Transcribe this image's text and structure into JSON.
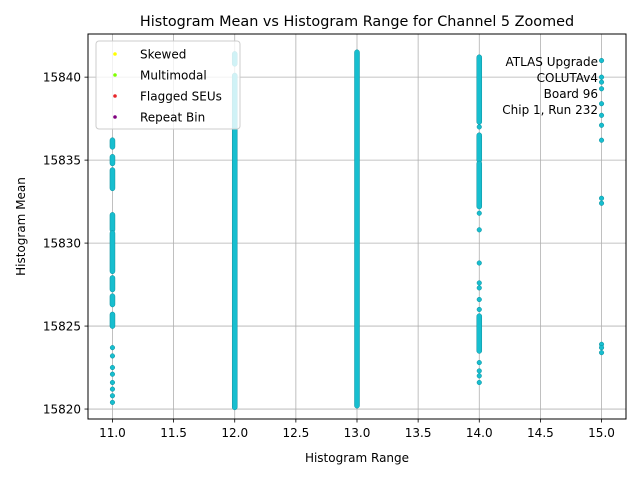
{
  "chart_data": {
    "type": "scatter",
    "title": "Histogram Mean vs Histogram Range for Channel 5 Zoomed",
    "xlabel": "Histogram Range",
    "ylabel": "Histogram Mean",
    "xlim": [
      10.8,
      15.2
    ],
    "ylim": [
      15819.4,
      15842.6
    ],
    "xticks": [
      11.0,
      11.5,
      12.0,
      12.5,
      13.0,
      13.5,
      14.0,
      14.5,
      15.0
    ],
    "xtick_labels": [
      "11.0",
      "11.5",
      "12.0",
      "12.5",
      "13.0",
      "13.5",
      "14.0",
      "14.5",
      "15.0"
    ],
    "yticks": [
      15820,
      15825,
      15830,
      15835,
      15840
    ],
    "ytick_labels": [
      "15820",
      "15825",
      "15830",
      "15835",
      "15840"
    ],
    "grid": true,
    "legend_position": "top-left",
    "legend": [
      {
        "label": "Skewed",
        "color": "#ffff00"
      },
      {
        "label": "Multimodal",
        "color": "#7fff00"
      },
      {
        "label": "Flagged SEUs",
        "color": "#e8262a"
      },
      {
        "label": "Repeat Bin",
        "color": "#800080"
      }
    ],
    "point_color": "#17becf",
    "annotation": [
      "ATLAS Upgrade",
      "COLUTAv4",
      "Board 96",
      "Chip 1, Run 232"
    ],
    "series": [
      {
        "name": "range 11",
        "x": 11.0,
        "segments": [
          [
            15835.8,
            15836.2
          ],
          [
            15834.8,
            15835.2
          ],
          [
            15833.3,
            15834.4
          ],
          [
            15830.8,
            15831.7
          ],
          [
            15828.3,
            15830.6
          ],
          [
            15827.2,
            15827.9
          ],
          [
            15826.3,
            15826.8
          ],
          [
            15825.0,
            15825.7
          ]
        ],
        "points": [
          15823.7,
          15823.2,
          15822.5,
          15822.1,
          15821.6,
          15821.2,
          15820.8,
          15820.4
        ]
      },
      {
        "name": "range 12",
        "x": 12.0,
        "segments": [
          [
            15840.8,
            15841.4
          ],
          [
            15820.1,
            15840.1
          ]
        ],
        "points": []
      },
      {
        "name": "range 13",
        "x": 13.0,
        "segments": [
          [
            15820.2,
            15841.5
          ]
        ],
        "points": []
      },
      {
        "name": "range 14",
        "x": 14.0,
        "segments": [
          [
            15837.3,
            15841.2
          ],
          [
            15835.0,
            15836.5
          ],
          [
            15832.2,
            15834.8
          ],
          [
            15823.5,
            15825.6
          ]
        ],
        "points": [
          15837.0,
          15831.8,
          15830.8,
          15828.8,
          15827.6,
          15827.3,
          15826.6,
          15826.0,
          15822.8,
          15822.3,
          15822.0,
          15821.6
        ]
      },
      {
        "name": "range 15",
        "x": 15.0,
        "segments": [],
        "points": [
          15841.0,
          15840.0,
          15839.7,
          15839.3,
          15838.4,
          15837.7,
          15837.1,
          15836.2,
          15832.7,
          15832.4,
          15823.9,
          15823.7,
          15823.4
        ]
      }
    ]
  }
}
